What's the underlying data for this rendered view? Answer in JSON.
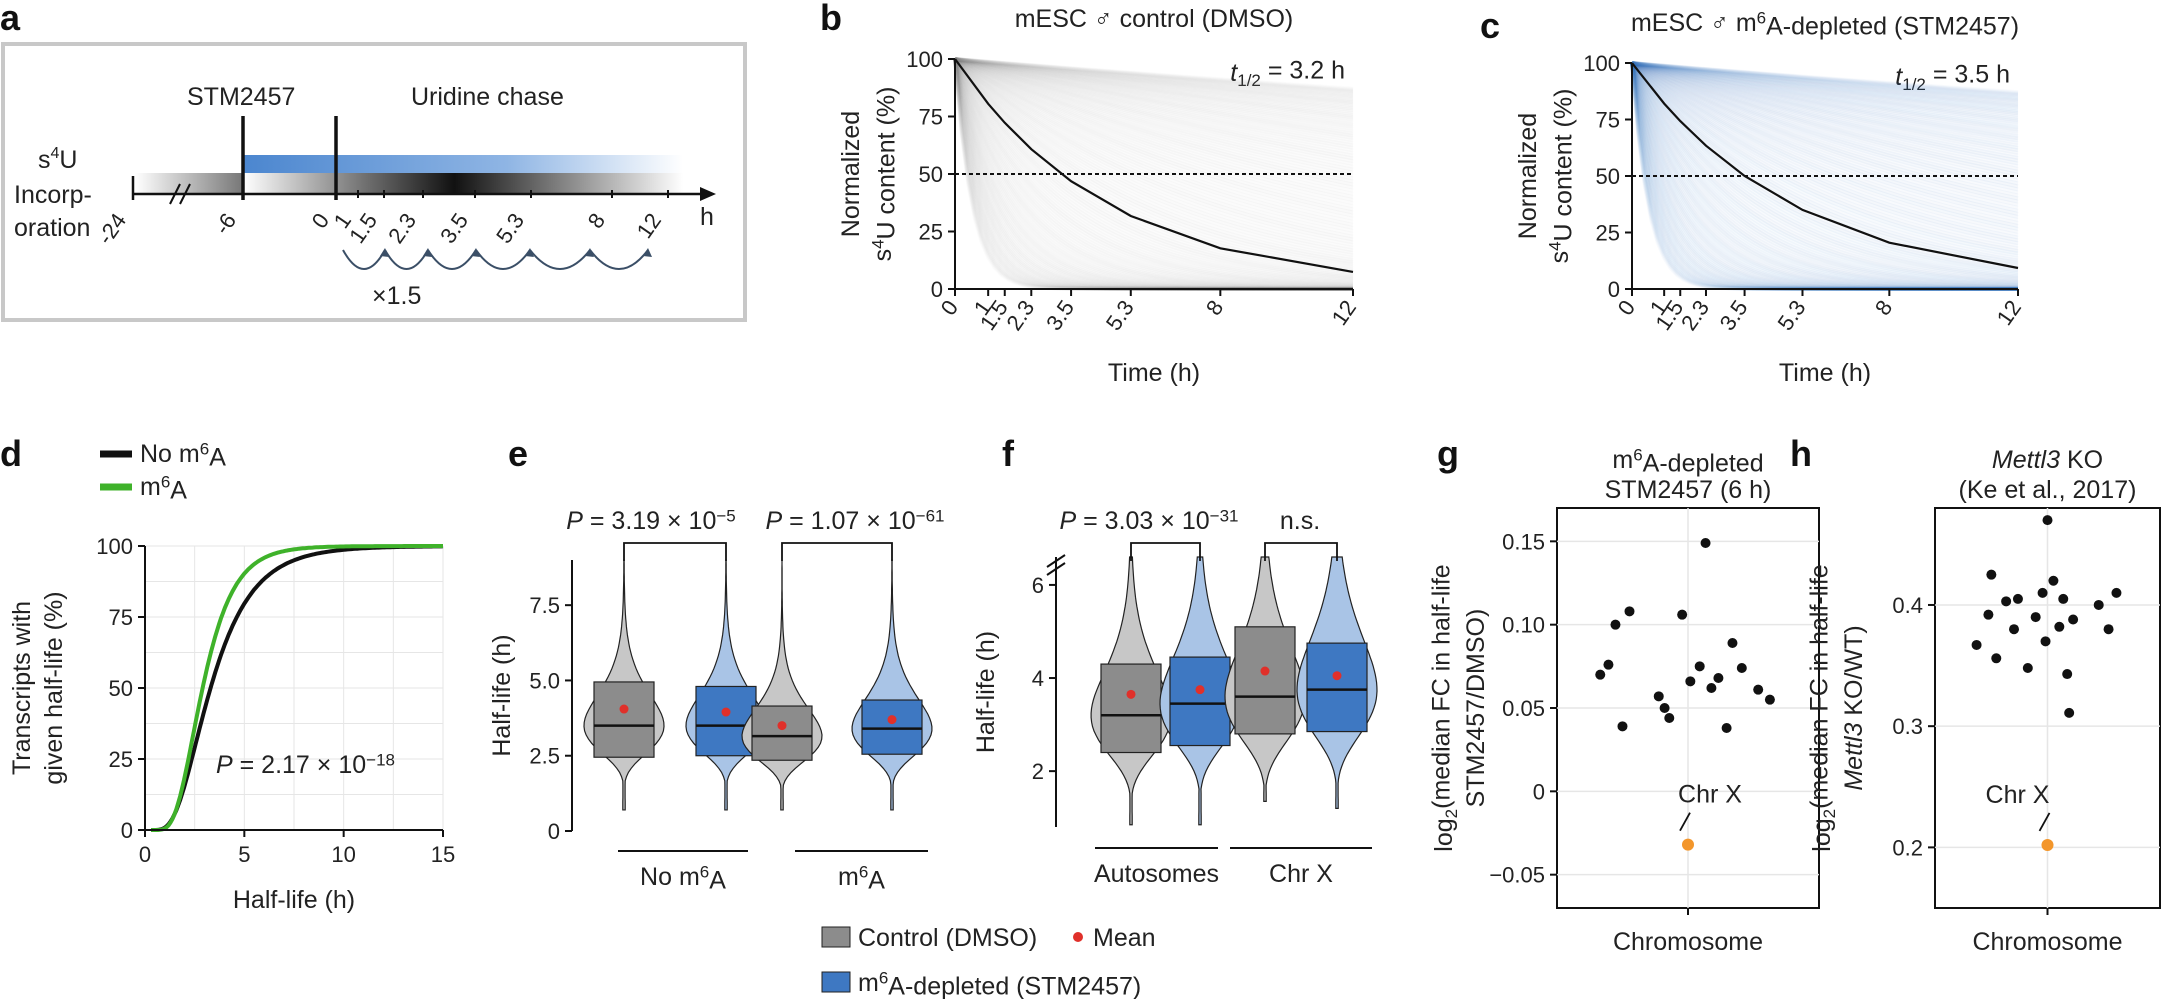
{
  "colors": {
    "control": "#8c8c8c",
    "stm": "#3e78c2",
    "green": "#3fb22a",
    "mean": "#e0302a",
    "chrx": "#f3962b",
    "black": "#111111",
    "grid": "#e6e6e6"
  },
  "panel_labels": {
    "a": "a",
    "b": "b",
    "c": "c",
    "d": "d",
    "e": "e",
    "f": "f",
    "g": "g",
    "h": "h"
  },
  "schematic": {
    "stm_label": "STM2457",
    "chase_label": "Uridine chase",
    "s4u_label_1": "s",
    "s4u_sup": "4",
    "s4u_label_2": "U",
    "incorp_1": "Incorp-",
    "incorp_2": "oration",
    "ticks": [
      "-24",
      "-6",
      "0",
      "1",
      "1.5",
      "2.3",
      "3.5",
      "5.3",
      "8",
      "12"
    ],
    "unit": "h",
    "factor": "×1.5"
  },
  "chart_data": [
    {
      "id": "b",
      "type": "line",
      "title": "mESC ♂ control (DMSO)",
      "half_life_label": "t",
      "half_life_sub": "1/2",
      "half_life_value": " = 3.2 h",
      "x": [
        0,
        1,
        1.5,
        2.3,
        3.5,
        5.3,
        8,
        12
      ],
      "xticks": [
        "0",
        "1",
        "1.5",
        "2.3",
        "3.5",
        "5.3",
        "8",
        "12"
      ],
      "yticks": [
        "0",
        "25",
        "50",
        "75",
        "100"
      ],
      "xlabel": "Time (h)",
      "ylabel_1": "Normalized",
      "ylabel_2a": "s",
      "ylabel_sup": "4",
      "ylabel_2b": "U content (%)",
      "ylim": [
        0,
        100
      ],
      "xlim": [
        0,
        12
      ],
      "threshold": 50,
      "half_life": 3.2,
      "series_color": "control"
    },
    {
      "id": "c",
      "type": "line",
      "title": "mESC ♂ m",
      "title_sup": "6",
      "title_2": "A-depleted (STM2457)",
      "half_life_label": "t",
      "half_life_sub": "1/2",
      "half_life_value": " = 3.5 h",
      "x": [
        0,
        1,
        1.5,
        2.3,
        3.5,
        5.3,
        8,
        12
      ],
      "xticks": [
        "0",
        "1",
        "1.5",
        "2.3",
        "3.5",
        "5.3",
        "8",
        "12"
      ],
      "yticks": [
        "0",
        "25",
        "50",
        "75",
        "100"
      ],
      "xlabel": "Time (h)",
      "ylabel_1": "Normalized",
      "ylabel_2a": "s",
      "ylabel_sup": "4",
      "ylabel_2b": "U content (%)",
      "ylim": [
        0,
        100
      ],
      "xlim": [
        0,
        12
      ],
      "threshold": 50,
      "half_life": 3.5,
      "series_color": "stm"
    },
    {
      "id": "d",
      "type": "line",
      "legend": [
        {
          "name": "No m",
          "sup": "6",
          "name2": "A",
          "color": "black",
          "median": 3.3
        },
        {
          "name": "m",
          "sup": "6",
          "name2": "A",
          "color": "green",
          "median": 2.9
        }
      ],
      "xlim": [
        0,
        15
      ],
      "ylim": [
        0,
        100
      ],
      "xticks": [
        "0",
        "5",
        "10",
        "15"
      ],
      "yticks": [
        "0",
        "25",
        "50",
        "75",
        "100"
      ],
      "xlabel": "Half-life (h)",
      "ylabel_1": "Transcripts with",
      "ylabel_2": "given half-life (%)",
      "p_label": "P",
      "p_text": " = 2.17 × 10",
      "p_exp": "−18"
    },
    {
      "id": "e",
      "type": "box",
      "ylim": [
        0,
        9
      ],
      "yticks": [
        "0",
        "2.5",
        "5.0",
        "7.5"
      ],
      "ylabel": "Half-life (h)",
      "groups": [
        {
          "name": "No m",
          "sup": "6",
          "name2": "A"
        },
        {
          "name": "m",
          "sup": "6",
          "name2": "A"
        }
      ],
      "boxes": [
        {
          "color": "control",
          "q1": 2.45,
          "median": 3.5,
          "q3": 4.95,
          "mean": 4.05,
          "min": 0.7,
          "max": 9.0
        },
        {
          "color": "stm",
          "q1": 2.5,
          "median": 3.5,
          "q3": 4.8,
          "mean": 3.95,
          "min": 0.7,
          "max": 9.0
        },
        {
          "color": "control",
          "q1": 2.35,
          "median": 3.15,
          "q3": 4.15,
          "mean": 3.5,
          "min": 0.7,
          "max": 9.0
        },
        {
          "color": "stm",
          "q1": 2.55,
          "median": 3.4,
          "q3": 4.35,
          "mean": 3.7,
          "min": 0.7,
          "max": 9.0
        }
      ],
      "pvals": [
        {
          "label": "P",
          "text": " = 3.19 × 10",
          "exp": "−5"
        },
        {
          "label": "P",
          "text": " = 1.07 × 10",
          "exp": "−61"
        }
      ]
    },
    {
      "id": "f",
      "type": "box",
      "ylim": [
        0.8,
        6.6
      ],
      "yticks": [
        "2",
        "4",
        "6"
      ],
      "ylabel": "Half-life (h)",
      "groups": [
        {
          "name": "Autosomes"
        },
        {
          "name": "Chr X"
        }
      ],
      "boxes": [
        {
          "color": "control",
          "q1": 2.4,
          "median": 3.2,
          "q3": 4.3,
          "mean": 3.65,
          "min": 0.85,
          "max": 6.6
        },
        {
          "color": "stm",
          "q1": 2.55,
          "median": 3.45,
          "q3": 4.45,
          "mean": 3.75,
          "min": 0.85,
          "max": 6.6
        },
        {
          "color": "control",
          "q1": 2.8,
          "median": 3.6,
          "q3": 5.1,
          "mean": 4.15,
          "min": 1.35,
          "max": 6.6
        },
        {
          "color": "stm",
          "q1": 2.85,
          "median": 3.75,
          "q3": 4.75,
          "mean": 4.05,
          "min": 1.2,
          "max": 6.6
        }
      ],
      "pvals": [
        {
          "label": "P",
          "text": " = 3.03 × 10",
          "exp": "−31"
        },
        {
          "label": "",
          "text": "n.s.",
          "exp": ""
        }
      ]
    },
    {
      "id": "g",
      "type": "scatter",
      "title_1a": "m",
      "title_sup": "6",
      "title_1b": "A-depleted",
      "title_2": "STM2457 (6 h)",
      "ylim": [
        -0.07,
        0.17
      ],
      "yticks": [
        "−0.05",
        "0",
        "0.05",
        "0.10",
        "0.15"
      ],
      "ytick_values": [
        -0.05,
        0,
        0.05,
        0.1,
        0.15
      ],
      "xlabel": "Chromosome",
      "ylabel_1a": "log",
      "ylabel_sub": "2",
      "ylabel_1b": "(median FC in half-life",
      "ylabel_2": "STM2457/DMSO)",
      "points": [
        [
          -0.75,
          0.07
        ],
        [
          -0.68,
          0.076
        ],
        [
          -0.62,
          0.1
        ],
        [
          -0.56,
          0.039
        ],
        [
          -0.5,
          0.108
        ],
        [
          -0.25,
          0.057
        ],
        [
          -0.2,
          0.05
        ],
        [
          -0.16,
          0.044
        ],
        [
          -0.05,
          0.106
        ],
        [
          0.02,
          0.066
        ],
        [
          0.1,
          0.075
        ],
        [
          0.15,
          0.149
        ],
        [
          0.2,
          0.062
        ],
        [
          0.26,
          0.068
        ],
        [
          0.33,
          0.038
        ],
        [
          0.38,
          0.089
        ],
        [
          0.46,
          0.074
        ],
        [
          0.6,
          0.061
        ],
        [
          0.7,
          0.055
        ]
      ],
      "chrx_point": [
        0.0,
        -0.032
      ],
      "chrx_label": "Chr X"
    },
    {
      "id": "h",
      "type": "scatter",
      "title_1a": "Mettl3",
      "title_1b": " KO",
      "title_2": "(Ke et al., 2017)",
      "ylim": [
        0.15,
        0.48
      ],
      "yticks": [
        "0.2",
        "0.3",
        "0.4"
      ],
      "ytick_values": [
        0.2,
        0.3,
        0.4
      ],
      "xlabel": "Chromosome",
      "ylabel_1a": "log",
      "ylabel_sub": "2",
      "ylabel_1b": "(median FC in half-life",
      "ylabel_2a": "Mettl3",
      "ylabel_2b": " KO/WT)",
      "points": [
        [
          -0.72,
          0.367
        ],
        [
          -0.6,
          0.392
        ],
        [
          -0.57,
          0.425
        ],
        [
          -0.52,
          0.356
        ],
        [
          -0.42,
          0.403
        ],
        [
          -0.34,
          0.38
        ],
        [
          -0.3,
          0.405
        ],
        [
          -0.2,
          0.348
        ],
        [
          -0.12,
          0.39
        ],
        [
          -0.05,
          0.41
        ],
        [
          0.0,
          0.47
        ],
        [
          -0.02,
          0.37
        ],
        [
          0.06,
          0.42
        ],
        [
          0.12,
          0.382
        ],
        [
          0.16,
          0.405
        ],
        [
          0.2,
          0.343
        ],
        [
          0.22,
          0.311
        ],
        [
          0.26,
          0.388
        ],
        [
          0.52,
          0.4
        ],
        [
          0.62,
          0.38
        ],
        [
          0.7,
          0.41
        ]
      ],
      "chrx_point": [
        0.0,
        0.202
      ],
      "chrx_label": "Chr X"
    }
  ],
  "box_legend": {
    "control": "Control (DMSO)",
    "mean": "Mean",
    "stm_1": "m",
    "stm_sup": "6",
    "stm_2": "A-depleted (STM2457)"
  }
}
